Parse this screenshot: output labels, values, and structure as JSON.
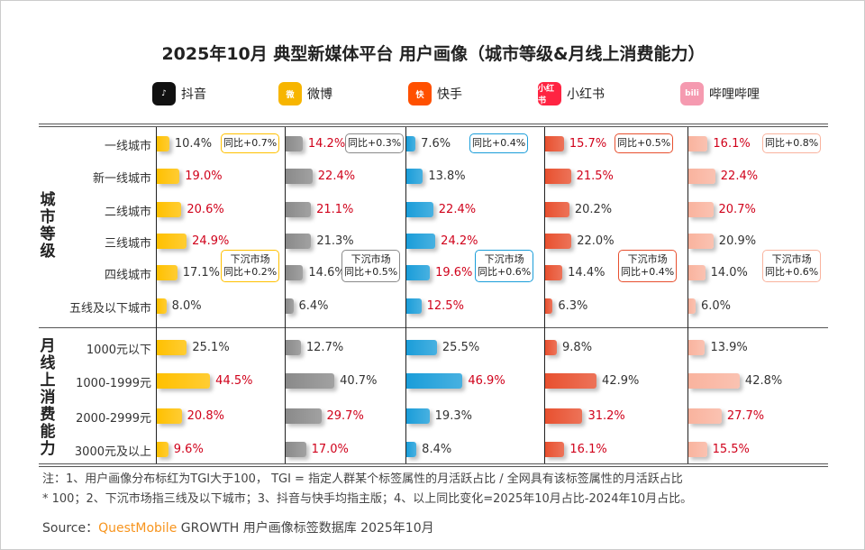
{
  "title": "2025年10月 典型新媒体平台 用户画像（城市等级&月线上消费能力）",
  "chart_data": {
    "type": "bar",
    "orientation": "horizontal",
    "groups": [
      {
        "label": "城市等级",
        "categories": [
          "一线城市",
          "新一线城市",
          "二线城市",
          "三线城市",
          "四线城市",
          "五线及以下城市"
        ]
      },
      {
        "label": "月线上消费能力",
        "categories": [
          "1000元以下",
          "1000-1999元",
          "2000-2999元",
          "3000元及以上"
        ]
      }
    ],
    "series": [
      {
        "name": "抖音",
        "color": "#FFC000",
        "city": [
          10.4,
          19.0,
          20.6,
          24.9,
          17.1,
          8.0
        ],
        "city_tgi_high": [
          false,
          true,
          true,
          true,
          false,
          false
        ],
        "income": [
          25.1,
          44.5,
          20.8,
          9.6
        ],
        "income_tgi_high": [
          false,
          true,
          true,
          true
        ],
        "yoy_tier1": "同比+0.7%",
        "sinking_label": "下沉市场",
        "yoy_sinking": "同比+0.2%"
      },
      {
        "name": "微博",
        "color": "#8A8A8A",
        "city": [
          14.2,
          22.4,
          21.1,
          21.3,
          14.6,
          6.4
        ],
        "city_tgi_high": [
          true,
          true,
          true,
          false,
          false,
          false
        ],
        "income": [
          12.7,
          40.7,
          29.7,
          17.0
        ],
        "income_tgi_high": [
          false,
          false,
          true,
          true
        ],
        "yoy_tier1": "同比+0.3%",
        "sinking_label": "下沉市场",
        "yoy_sinking": "同比+0.5%"
      },
      {
        "name": "快手",
        "color": "#1A9DD9",
        "city": [
          7.6,
          13.8,
          22.4,
          24.2,
          19.6,
          12.5
        ],
        "city_tgi_high": [
          false,
          false,
          true,
          true,
          true,
          true
        ],
        "income": [
          25.5,
          46.9,
          19.3,
          8.4
        ],
        "income_tgi_high": [
          false,
          true,
          false,
          false
        ],
        "yoy_tier1": "同比+0.4%",
        "sinking_label": "下沉市场",
        "yoy_sinking": "同比+0.6%"
      },
      {
        "name": "小红书",
        "color": "#E8502F",
        "city": [
          15.7,
          21.5,
          20.2,
          22.0,
          14.4,
          6.3
        ],
        "city_tgi_high": [
          true,
          true,
          false,
          false,
          false,
          false
        ],
        "income": [
          9.8,
          42.9,
          31.2,
          16.1
        ],
        "income_tgi_high": [
          false,
          false,
          true,
          true
        ],
        "yoy_tier1": "同比+0.5%",
        "sinking_label": "下沉市场",
        "yoy_sinking": "同比+0.4%"
      },
      {
        "name": "哔哩哔哩",
        "color": "#F9B39E",
        "city": [
          16.1,
          22.4,
          20.7,
          20.9,
          14.0,
          6.0
        ],
        "city_tgi_high": [
          true,
          true,
          true,
          false,
          false,
          false
        ],
        "income": [
          13.9,
          42.8,
          27.7,
          15.5
        ],
        "income_tgi_high": [
          false,
          false,
          true,
          true
        ],
        "yoy_tier1": "同比+0.8%",
        "sinking_label": "下沉市场",
        "yoy_sinking": "同比+0.6%"
      }
    ],
    "unit": "%",
    "highlight_color": "#D0021B"
  },
  "logos": [
    {
      "name": "抖音",
      "icon": "douyin-icon",
      "color": "#111111",
      "glyph": "♪"
    },
    {
      "name": "微博",
      "icon": "weibo-icon",
      "color": "#F7B500",
      "glyph": "微"
    },
    {
      "name": "快手",
      "icon": "kuaishou-icon",
      "color": "#FF5000",
      "glyph": "快"
    },
    {
      "name": "小红书",
      "icon": "xiaohongshu-icon",
      "color": "#FF2442",
      "glyph": "小红书"
    },
    {
      "name": "哔哩哔哩",
      "icon": "bilibili-icon",
      "color": "#F59AB0",
      "glyph": "bili"
    }
  ],
  "notes": [
    "注：1、用户画像分布标红为TGI大于100， TGI = 指定人群某个标签属性的月活跃占比 / 全网具有该标签属性的月活跃占比",
    "* 100；2、下沉市场指三线及以下城市；3、抖音与快手均指主版；4、以上同比变化=2025年10月占比-2024年10月占比。"
  ],
  "source": {
    "prefix": "Source：",
    "brand": "QuestMobile",
    "rest": " GROWTH 用户画像标签数据库 2025年10月"
  }
}
